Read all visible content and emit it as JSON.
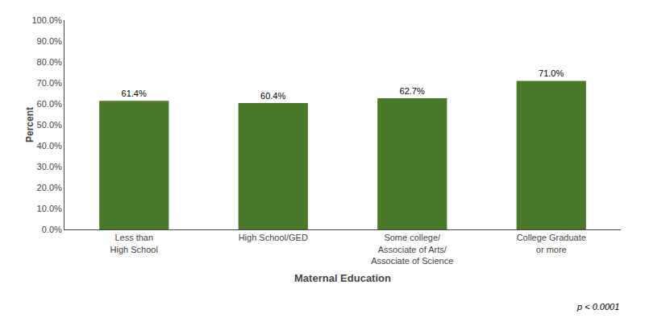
{
  "chart_data": {
    "type": "bar",
    "categories": [
      "Less than\nHigh School",
      "High School/GED",
      "Some college/\nAssociate of Arts/\nAssociate of Science",
      "College Graduate\nor more"
    ],
    "values": [
      61.4,
      60.4,
      62.7,
      71.0
    ],
    "value_labels": [
      "61.4%",
      "60.4%",
      "62.7%",
      "71.0%"
    ],
    "data_labels": true,
    "color": "#4a7a29",
    "xlabel": "Maternal Education",
    "ylabel": "Percent",
    "ylim": [
      0,
      100
    ],
    "yticks": [
      {
        "value": 0,
        "label": "0.0%"
      },
      {
        "value": 10,
        "label": "10.0%"
      },
      {
        "value": 20,
        "label": "20.0%"
      },
      {
        "value": 30,
        "label": "30.0%"
      },
      {
        "value": 40,
        "label": "40.0%"
      },
      {
        "value": 50,
        "label": "50.0%"
      },
      {
        "value": 60,
        "label": "60.0%"
      },
      {
        "value": 70,
        "label": "70.0%"
      },
      {
        "value": 80,
        "label": "80.0%"
      },
      {
        "value": 90,
        "label": "90.0%"
      },
      {
        "value": 100,
        "label": "100.0%"
      }
    ],
    "grid": false,
    "annotations": [
      "p < 0.0001"
    ]
  }
}
